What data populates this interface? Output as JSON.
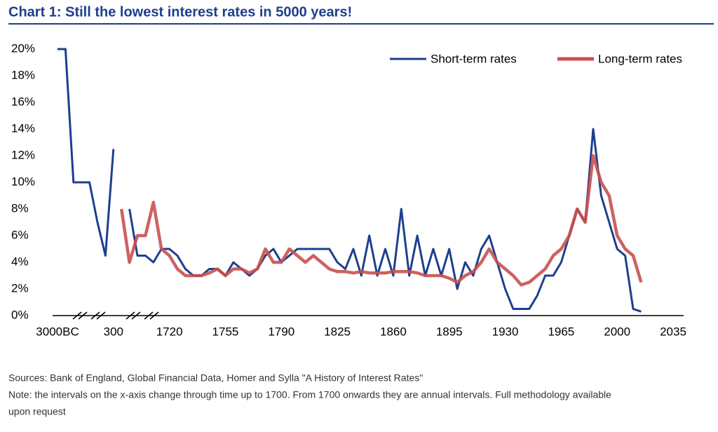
{
  "chart_data": {
    "type": "line",
    "title": "Chart 1:  Still the lowest interest rates in 5000 years!",
    "notes": [
      "Sources: Bank of England, Global Financial Data, Homer and Sylla \"A History of Interest Rates\"",
      "Note: the intervals on the x-axis change through time up to 1700. From 1700 onwards they are annual intervals. Full methodology available",
      "upon request"
    ],
    "categories": [
      "3000BC",
      null,
      null,
      null,
      null,
      null,
      null,
      "300",
      null,
      null,
      null,
      null,
      null,
      null,
      "1720",
      null,
      null,
      null,
      null,
      null,
      null,
      "1755",
      null,
      null,
      null,
      null,
      null,
      null,
      "1790",
      null,
      null,
      null,
      null,
      null,
      null,
      "1825",
      null,
      null,
      null,
      null,
      null,
      null,
      "1860",
      null,
      null,
      null,
      null,
      null,
      null,
      "1895",
      null,
      null,
      null,
      null,
      null,
      null,
      "1930",
      null,
      null,
      null,
      null,
      null,
      null,
      "1965",
      null,
      null,
      null,
      null,
      null,
      null,
      "2000",
      null,
      null,
      null,
      null,
      null,
      null,
      "2035"
    ],
    "series": [
      {
        "name": "Short-term rates",
        "color": "#1d3f8f",
        "values": [
          20,
          20,
          10,
          10,
          10,
          7,
          4.5,
          12.5,
          null,
          8,
          4.5,
          4.5,
          4,
          5,
          5,
          4.5,
          3.5,
          3,
          3,
          3.5,
          3.5,
          3,
          4,
          3.5,
          3,
          3.5,
          4.5,
          5,
          4,
          4.5,
          5,
          5,
          5,
          5,
          5,
          4,
          3.5,
          5,
          3,
          6,
          3,
          5,
          3,
          8,
          3,
          6,
          3,
          5,
          3,
          5,
          2,
          4,
          3,
          5,
          6,
          4,
          2,
          0.5,
          0.5,
          0.5,
          1.5,
          3,
          3,
          4,
          6,
          8,
          7,
          14,
          9,
          7,
          5,
          4.5,
          0.5,
          0.3,
          null,
          null,
          null,
          null
        ]
      },
      {
        "name": "Long-term rates",
        "color": "#c9504f",
        "values": [
          null,
          null,
          null,
          null,
          null,
          null,
          null,
          null,
          8,
          4,
          6,
          6,
          8.5,
          5,
          4.5,
          3.5,
          3,
          3,
          3,
          3.2,
          3.5,
          3,
          3.5,
          3.5,
          3.2,
          3.5,
          5,
          4,
          4,
          5,
          4.5,
          4,
          4.5,
          4,
          3.5,
          3.3,
          3.3,
          3.2,
          3.3,
          3.2,
          3.2,
          3.2,
          3.3,
          3.3,
          3.3,
          3.2,
          3,
          3,
          3,
          2.8,
          2.5,
          3,
          3.3,
          4,
          5,
          4,
          3.5,
          3,
          2.3,
          2.5,
          3,
          3.5,
          4.5,
          5,
          6,
          8,
          7,
          12,
          10,
          9,
          6,
          5,
          4.5,
          2.5,
          null,
          null,
          null,
          null
        ]
      }
    ],
    "ylim": [
      0,
      20
    ],
    "yticks": [
      {
        "value": 0,
        "label": "0%"
      },
      {
        "value": 2,
        "label": "2%"
      },
      {
        "value": 4,
        "label": "4%"
      },
      {
        "value": 6,
        "label": "6%"
      },
      {
        "value": 8,
        "label": "8%"
      },
      {
        "value": 10,
        "label": "10%"
      },
      {
        "value": 12,
        "label": "12%"
      },
      {
        "value": 14,
        "label": "14%"
      },
      {
        "value": 16,
        "label": "16%"
      },
      {
        "value": 18,
        "label": "18%"
      },
      {
        "value": 20,
        "label": "20%"
      }
    ],
    "legend": "top-right"
  }
}
